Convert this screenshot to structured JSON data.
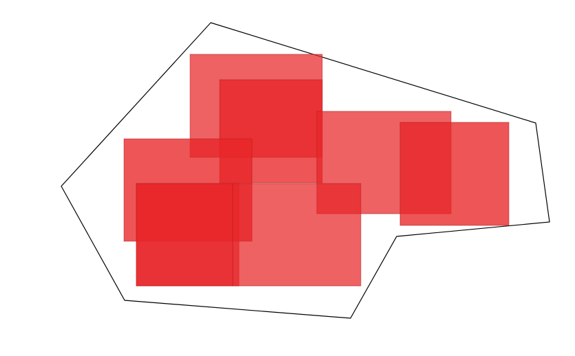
{
  "colors": {
    "background": "#ffffff",
    "outline_stroke": "#000000",
    "rect_fill": "#e82528",
    "rect_stroke": "#b01d1f"
  },
  "diagram": {
    "outline": {
      "shape": "polygon",
      "fill": "none"
    },
    "rectangles": [
      {
        "shade": "light"
      },
      {
        "shade": "dark"
      },
      {
        "shade": "light"
      },
      {
        "shade": "dark"
      },
      {
        "shade": "dark"
      },
      {
        "shade": "light"
      },
      {
        "shade": "light"
      },
      {
        "shade": "dark"
      }
    ]
  }
}
